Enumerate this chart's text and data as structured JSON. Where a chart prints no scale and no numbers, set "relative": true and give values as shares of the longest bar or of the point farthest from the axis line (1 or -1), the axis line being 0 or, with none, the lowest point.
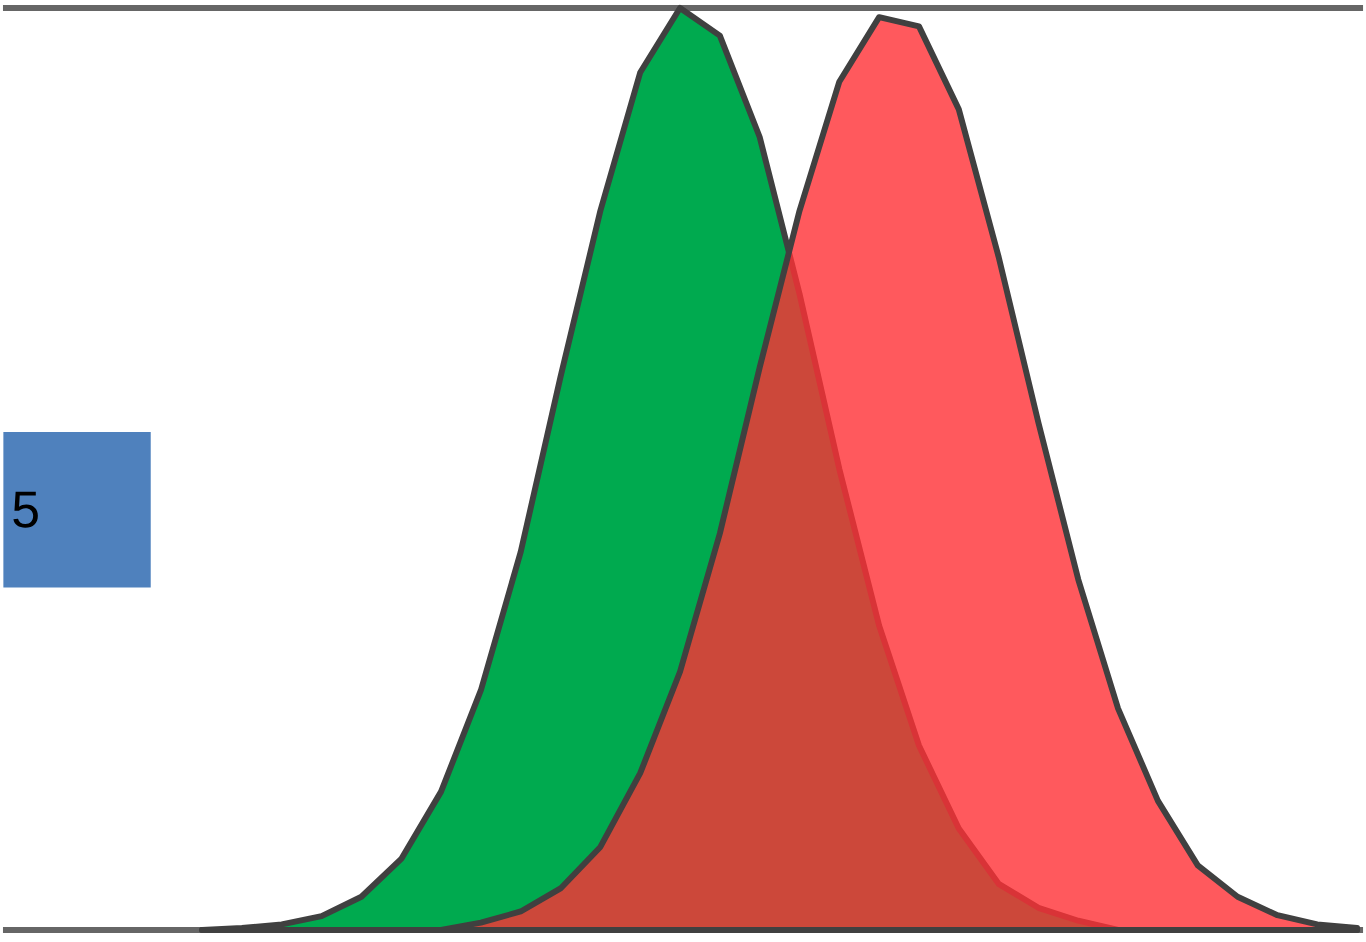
{
  "chart_data": {
    "type": "area",
    "relative": true,
    "categories": [
      null,
      null,
      null,
      null,
      null,
      null,
      null,
      null,
      null,
      null,
      null,
      null,
      null,
      null,
      null,
      null,
      null,
      null,
      null,
      null,
      null,
      null,
      null,
      null,
      null,
      null,
      null,
      null,
      null,
      null
    ],
    "series": [
      {
        "color": "#00aa4f",
        "values": [
          0,
          0.002,
          0.006,
          0.015,
          0.036,
          0.077,
          0.15,
          0.26,
          0.41,
          0.6,
          0.78,
          0.93,
          1,
          0.97,
          0.86,
          0.69,
          0.5,
          0.33,
          0.2,
          0.11,
          0.05,
          0.024,
          0.01,
          0,
          0,
          0,
          0,
          0,
          0,
          0
        ]
      },
      {
        "color": "#ff3035",
        "values": [
          0,
          0,
          0,
          0,
          0,
          0,
          0,
          0.008,
          0.02,
          0.045,
          0.09,
          0.17,
          0.28,
          0.43,
          0.61,
          0.78,
          0.92,
          0.99,
          0.98,
          0.89,
          0.73,
          0.55,
          0.38,
          0.24,
          0.14,
          0.07,
          0.036,
          0.016,
          0.006,
          0.002
        ]
      }
    ],
    "annotations": [
      "5"
    ]
  }
}
